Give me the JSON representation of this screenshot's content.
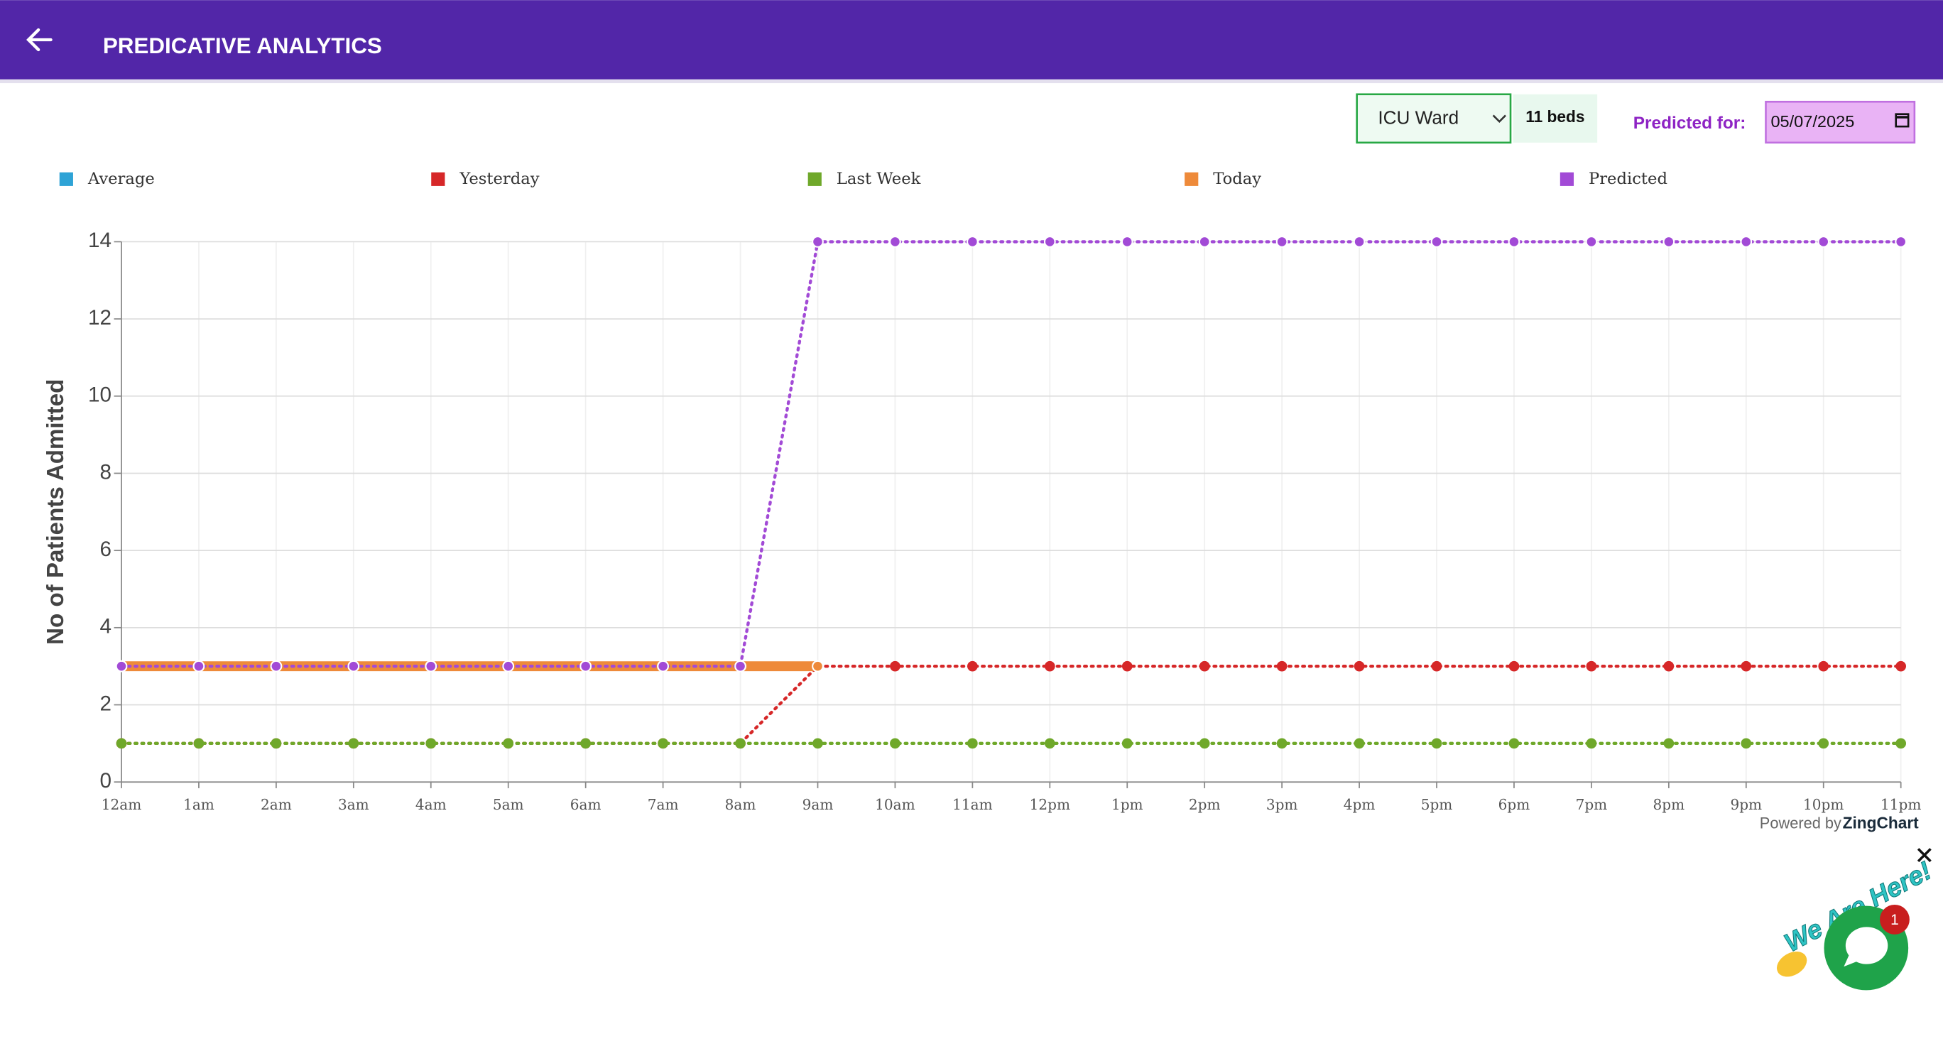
{
  "header": {
    "title": "PREDICATIVE ANALYTICS"
  },
  "controls": {
    "ward": "ICU Ward",
    "beds": "11 beds",
    "predicted_label": "Predicted for:",
    "date": "05/07/2025"
  },
  "chart_data": {
    "type": "line",
    "y_label": "No of Patients Admitted",
    "categories": [
      "12am",
      "1am",
      "2am",
      "3am",
      "4am",
      "5am",
      "6am",
      "7am",
      "8am",
      "9am",
      "10am",
      "11am",
      "12pm",
      "1pm",
      "2pm",
      "3pm",
      "4pm",
      "5pm",
      "6pm",
      "7pm",
      "8pm",
      "9pm",
      "10pm",
      "11pm"
    ],
    "series": [
      {
        "name": "Average",
        "color": "#2ea3d6",
        "line_style": "dotted",
        "values": [
          null,
          null,
          null,
          null,
          null,
          null,
          null,
          null,
          null,
          null,
          null,
          null,
          null,
          null,
          null,
          null,
          null,
          null,
          null,
          null,
          null,
          null,
          null,
          null
        ]
      },
      {
        "name": "Yesterday",
        "color": "#d62728",
        "line_style": "dotted",
        "values": [
          1,
          1,
          1,
          1,
          1,
          1,
          1,
          1,
          1,
          3,
          3,
          3,
          3,
          3,
          3,
          3,
          3,
          3,
          3,
          3,
          3,
          3,
          3,
          3
        ]
      },
      {
        "name": "Last Week",
        "color": "#6fa82a",
        "line_style": "dotted",
        "values": [
          1,
          1,
          1,
          1,
          1,
          1,
          1,
          1,
          1,
          1,
          1,
          1,
          1,
          1,
          1,
          1,
          1,
          1,
          1,
          1,
          1,
          1,
          1,
          1
        ]
      },
      {
        "name": "Today",
        "color": "#ee8a3a",
        "line_style": "solid",
        "values": [
          3,
          3,
          3,
          3,
          3,
          3,
          3,
          3,
          3,
          3,
          null,
          null,
          null,
          null,
          null,
          null,
          null,
          null,
          null,
          null,
          null,
          null,
          null,
          null
        ]
      },
      {
        "name": "Predicted",
        "color": "#a24ad6",
        "line_style": "dotted",
        "values": [
          3,
          3,
          3,
          3,
          3,
          3,
          3,
          3,
          3,
          14,
          14,
          14,
          14,
          14,
          14,
          14,
          14,
          14,
          14,
          14,
          14,
          14,
          14,
          14
        ]
      }
    ],
    "ylim": [
      0,
      14
    ],
    "yticks": [
      0,
      2,
      4,
      6,
      8,
      10,
      12,
      14
    ],
    "grid": true,
    "legend": "top"
  },
  "footer": {
    "powered": "Powered by",
    "brand": "ZingChart"
  },
  "widget": {
    "text": "We Are Here!",
    "badge": "1"
  }
}
